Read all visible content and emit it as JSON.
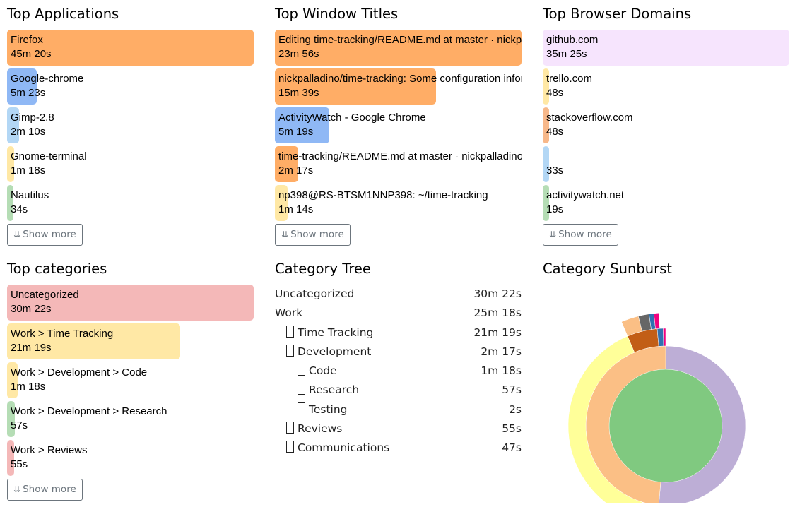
{
  "applications": {
    "title": "Top Applications",
    "items": [
      {
        "name": "Firefox",
        "time": "45m 20s",
        "fraction": 1.0,
        "color": "#ffad66"
      },
      {
        "name": "Google-chrome",
        "time": "5m 23s",
        "fraction": 0.119,
        "color": "#8fb8f5"
      },
      {
        "name": "Gimp-2.8",
        "time": "2m 10s",
        "fraction": 0.048,
        "color": "#b3d7f5"
      },
      {
        "name": "Gnome-terminal",
        "time": "1m 18s",
        "fraction": 0.029,
        "color": "#ffe8a5"
      },
      {
        "name": "Nautilus",
        "time": "34s",
        "fraction": 0.013,
        "color": "#b5ddb5"
      }
    ],
    "show_more": "Show more"
  },
  "window_titles": {
    "title": "Top Window Titles",
    "items": [
      {
        "name": "Editing time-tracking/README.md at master · nickpalladino/time-tracking",
        "time": "23m 56s",
        "fraction": 1.0,
        "color": "#ffad66"
      },
      {
        "name": "nickpalladino/time-tracking: Some configuration information",
        "time": "15m 39s",
        "fraction": 0.654,
        "color": "#ffad66"
      },
      {
        "name": "ActivityWatch - Google Chrome",
        "time": "5m 19s",
        "fraction": 0.222,
        "color": "#8fb8f5"
      },
      {
        "name": "time-tracking/README.md at master · nickpalladino/time-tracking",
        "time": "2m 17s",
        "fraction": 0.095,
        "color": "#ffad66"
      },
      {
        "name": "np398@RS-BTSM1NNP398: ~/time-tracking",
        "time": "1m 14s",
        "fraction": 0.052,
        "color": "#ffe8a5"
      }
    ],
    "show_more": "Show more"
  },
  "browser_domains": {
    "title": "Top Browser Domains",
    "items": [
      {
        "name": "github.com",
        "time": "35m 25s",
        "fraction": 1.0,
        "color": "#f6e4fd"
      },
      {
        "name": "trello.com",
        "time": "48s",
        "fraction": 0.023,
        "color": "#ffe8a5"
      },
      {
        "name": "stackoverflow.com",
        "time": "48s",
        "fraction": 0.023,
        "color": "#f7b88a"
      },
      {
        "name": "",
        "time": "33s",
        "fraction": 0.016,
        "color": "#b3d7f5"
      },
      {
        "name": "activitywatch.net",
        "time": "19s",
        "fraction": 0.009,
        "color": "#b5ddb5"
      }
    ],
    "show_more": "Show more"
  },
  "categories": {
    "title": "Top categories",
    "items": [
      {
        "name": "Uncategorized",
        "time": "30m 22s",
        "fraction": 1.0,
        "color": "#f4b8b8"
      },
      {
        "name": "Work > Time Tracking",
        "time": "21m 19s",
        "fraction": 0.702,
        "color": "#ffe8a5"
      },
      {
        "name": "Work > Development > Code",
        "time": "1m 18s",
        "fraction": 0.043,
        "color": "#ffe8a5"
      },
      {
        "name": "Work > Development > Research",
        "time": "57s",
        "fraction": 0.031,
        "color": "#b5ddb5"
      },
      {
        "name": "Work > Reviews",
        "time": "55s",
        "fraction": 0.03,
        "color": "#f4b8b8"
      }
    ],
    "show_more": "Show more"
  },
  "category_tree": {
    "title": "Category Tree",
    "rows": [
      {
        "name": "Uncategorized",
        "time": "30m 22s",
        "depth": 0,
        "box": false
      },
      {
        "name": "Work",
        "time": "25m 18s",
        "depth": 0,
        "box": false
      },
      {
        "name": "Time Tracking",
        "time": "21m 19s",
        "depth": 1,
        "box": true
      },
      {
        "name": "Development",
        "time": "2m 17s",
        "depth": 1,
        "box": true
      },
      {
        "name": "Code",
        "time": "1m 18s",
        "depth": 2,
        "box": true
      },
      {
        "name": "Research",
        "time": "57s",
        "depth": 2,
        "box": true
      },
      {
        "name": "Testing",
        "time": "2s",
        "depth": 2,
        "box": true
      },
      {
        "name": "Reviews",
        "time": "55s",
        "depth": 1,
        "box": true
      },
      {
        "name": "Communications",
        "time": "47s",
        "depth": 1,
        "box": true
      }
    ]
  },
  "sunburst": {
    "title": "Category Sunburst",
    "colors": {
      "center": "#80c980",
      "uncategorized": "#bdaed6",
      "work": "#fbbf85",
      "time_tracking": "#ffff99",
      "development": "#c25e16",
      "reviews": "#3070b0",
      "communications": "#f0027f",
      "dev_child_1": "#666666",
      "dev_child_2": "#fbbf85"
    }
  }
}
